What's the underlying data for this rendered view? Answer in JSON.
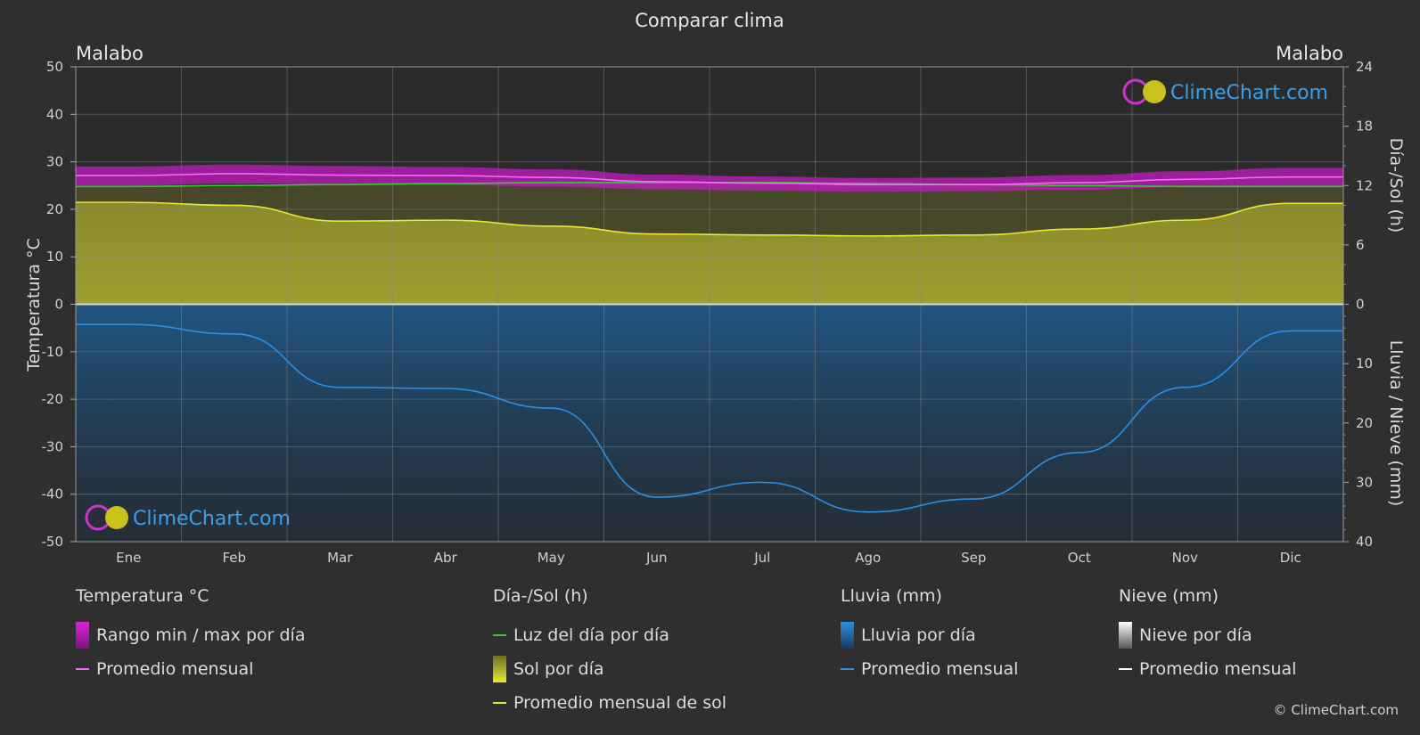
{
  "chart_data": {
    "type": "area",
    "title": "Comparar clima",
    "location_left": "Malabo",
    "location_right": "Malabo",
    "ylabel_left": "Temperatura °C",
    "ylabel_right_top": "Día-/Sol (h)",
    "ylabel_right_bottom": "Lluvia / Nieve (mm)",
    "ylim_temp": [
      -50,
      50
    ],
    "ylim_sun_h": [
      0,
      24
    ],
    "ylim_rain_mm": [
      0,
      40
    ],
    "yticks_left": [
      "50",
      "40",
      "30",
      "20",
      "10",
      "0",
      "-10",
      "-20",
      "-30",
      "-40",
      "-50"
    ],
    "yticks_right_top": [
      "24",
      "18",
      "12",
      "6",
      "0"
    ],
    "yticks_right_bottom": [
      "10",
      "20",
      "30",
      "40"
    ],
    "months": [
      "Ene",
      "Feb",
      "Mar",
      "Abr",
      "May",
      "Jun",
      "Jul",
      "Ago",
      "Sep",
      "Oct",
      "Nov",
      "Dic"
    ],
    "grid": true,
    "series": [
      {
        "name": "Promedio mensual",
        "group": "temperature",
        "unit": "°C",
        "color": "#ff66ff",
        "values": [
          27.1,
          27.5,
          27.2,
          27.1,
          26.7,
          25.8,
          25.5,
          25.2,
          25.2,
          25.6,
          26.3,
          26.8
        ]
      },
      {
        "name": "Rango min / max por día (max)",
        "group": "temperature",
        "unit": "°C",
        "color": "#e020e0",
        "values": [
          29.0,
          29.4,
          29.1,
          28.9,
          28.4,
          27.3,
          26.9,
          26.6,
          26.7,
          27.2,
          28.0,
          28.7
        ]
      },
      {
        "name": "Rango min / max por día (min)",
        "group": "temperature",
        "unit": "°C",
        "color": "#e020e0",
        "values": [
          25.0,
          25.4,
          25.2,
          25.1,
          24.8,
          24.2,
          23.9,
          23.7,
          23.8,
          24.1,
          24.7,
          24.9
        ]
      },
      {
        "name": "Luz del día por día",
        "group": "sun",
        "unit": "h",
        "color": "#33cc33",
        "values": [
          11.9,
          12.0,
          12.1,
          12.2,
          12.3,
          12.3,
          12.3,
          12.2,
          12.1,
          12.0,
          11.9,
          11.9
        ]
      },
      {
        "name": "Promedio mensual de sol",
        "group": "sun",
        "unit": "h",
        "color": "#e8e830",
        "values": [
          10.3,
          10.0,
          8.4,
          8.5,
          7.9,
          7.1,
          7.0,
          6.9,
          7.0,
          7.6,
          8.5,
          10.2
        ]
      },
      {
        "name": "Promedio mensual",
        "group": "rain",
        "unit": "mm",
        "color": "#2b8fe6",
        "values": [
          3.4,
          5.0,
          14.0,
          14.2,
          17.5,
          32.5,
          30.0,
          35.0,
          32.8,
          25.0,
          14.0,
          4.5
        ]
      }
    ]
  },
  "legend": {
    "temp": {
      "title": "Temperatura °C",
      "range": "Rango min / max por día",
      "avg": "Promedio mensual"
    },
    "sun": {
      "title": "Día-/Sol (h)",
      "daylight": "Luz del día por día",
      "sun": "Sol por día",
      "avg": "Promedio mensual de sol"
    },
    "rain": {
      "title": "Lluvia (mm)",
      "daily": "Lluvia por día",
      "avg": "Promedio mensual"
    },
    "snow": {
      "title": "Nieve (mm)",
      "daily": "Nieve por día",
      "avg": "Promedio mensual"
    }
  },
  "watermark": "ClimeChart.com",
  "copyright": "© ClimeChart.com"
}
